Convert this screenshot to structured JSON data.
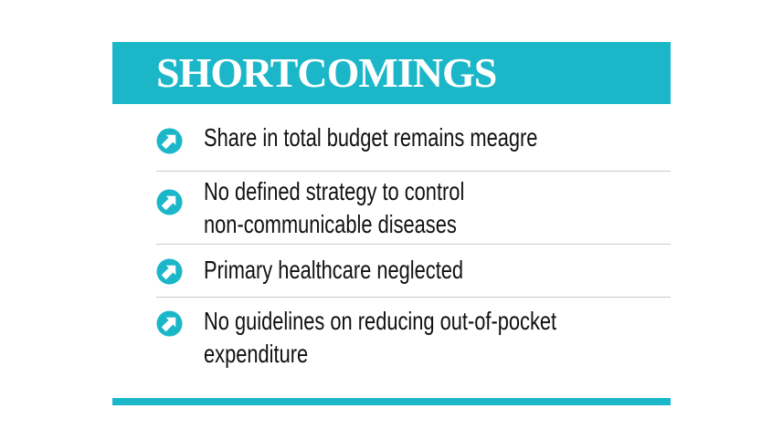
{
  "header": {
    "title": "SHORTCOMINGS"
  },
  "items": [
    {
      "text_lines": [
        "Share in total budget remains meagre"
      ]
    },
    {
      "text_lines": [
        "No defined strategy to control",
        "non-communicable diseases"
      ]
    },
    {
      "text_lines": [
        "Primary healthcare neglected"
      ]
    },
    {
      "text_lines": [
        "No guidelines on reducing out-of-pocket",
        "expenditure"
      ]
    }
  ],
  "icons": {
    "bullet": "arrow-up-right-circle-icon"
  },
  "colors": {
    "accent": "#1bb7c9",
    "text": "#111111",
    "divider": "#c9c9c9",
    "header_text": "#ffffff"
  }
}
